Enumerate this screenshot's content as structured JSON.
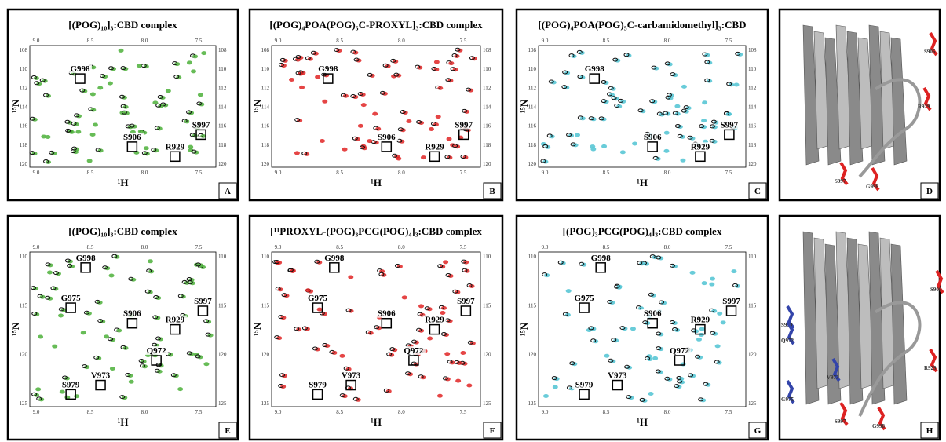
{
  "panels": [
    {
      "letter": "A",
      "title": "[(POG)₁₀]₃:CBD complex",
      "x_label": "¹H",
      "y_label": "¹⁵N",
      "peak_color": "#4cb03a",
      "x_ticks": [
        "9.0",
        "8.5",
        "8.0",
        "7.5"
      ],
      "y_ticks": [
        "108",
        "110",
        "112",
        "114",
        "116",
        "118",
        "120"
      ],
      "peak_labels": [
        "G998",
        "S906",
        "R929",
        "S997"
      ]
    },
    {
      "letter": "B",
      "title": "[(POG)₄POA(POG)₅C-PROXYL]₃:CBD complex",
      "x_label": "¹H",
      "y_label": "¹⁵N",
      "peak_color": "#e02424",
      "x_ticks": [
        "9.0",
        "8.5",
        "8.0",
        "7.5"
      ],
      "y_ticks": [
        "108",
        "110",
        "112",
        "114",
        "116",
        "118",
        "120"
      ],
      "peak_labels": [
        "G998",
        "S906",
        "R929",
        "S997"
      ]
    },
    {
      "letter": "C",
      "title": "[(POG)₄POA(POG)₅C-carbamidomethyl]₃:CBD",
      "x_label": "¹H",
      "y_label": "¹⁵N",
      "peak_color": "#4fc3d2",
      "x_ticks": [
        "9.0",
        "8.5",
        "8.0",
        "7.5"
      ],
      "y_ticks": [
        "108",
        "110",
        "112",
        "114",
        "116",
        "118",
        "120"
      ],
      "peak_labels": [
        "G998",
        "S906",
        "R929",
        "S997"
      ]
    },
    {
      "letter": "D",
      "structure_labels": [
        "S906",
        "R929",
        "S997",
        "G998"
      ]
    },
    {
      "letter": "E",
      "title": "[(POG)₁₀]₃:CBD complex",
      "x_label": "¹H",
      "y_label": "¹⁵N",
      "peak_color": "#4cb03a",
      "x_ticks": [
        "9.0",
        "8.5",
        "8.0",
        "7.5"
      ],
      "y_ticks": [
        "110",
        "115",
        "120",
        "125"
      ],
      "peak_labels": [
        "G998",
        "G975",
        "S906",
        "R929",
        "S997",
        "Q972",
        "V973",
        "S979"
      ]
    },
    {
      "letter": "F",
      "title": "[¹¹PROXYL-(POG)₃PCG(POG)₄]₃:CBD complex",
      "x_label": "¹H",
      "y_label": "¹⁵N",
      "peak_color": "#e02424",
      "x_ticks": [
        "9.0",
        "8.5",
        "8.0",
        "7.5"
      ],
      "y_ticks": [
        "110",
        "115",
        "120",
        "125"
      ],
      "peak_labels": [
        "G998",
        "G975",
        "S906",
        "R929",
        "S997",
        "Q972",
        "V973",
        "S979"
      ]
    },
    {
      "letter": "G",
      "title": "[(POG)₃PCG(POG)₄]₃:CBD complex",
      "x_label": "¹H",
      "y_label": "¹⁵N",
      "peak_color": "#4fc3d2",
      "x_ticks": [
        "9.0",
        "8.5",
        "8.0",
        "7.5"
      ],
      "y_ticks": [
        "110",
        "115",
        "120",
        "125"
      ],
      "peak_labels": [
        "G998",
        "G975",
        "S906",
        "R929",
        "S997",
        "Q972",
        "V973",
        "S979"
      ]
    },
    {
      "letter": "H",
      "structure_labels": [
        "S906",
        "S979",
        "Q972",
        "R929",
        "V973",
        "G975",
        "S997",
        "G998"
      ]
    }
  ]
}
